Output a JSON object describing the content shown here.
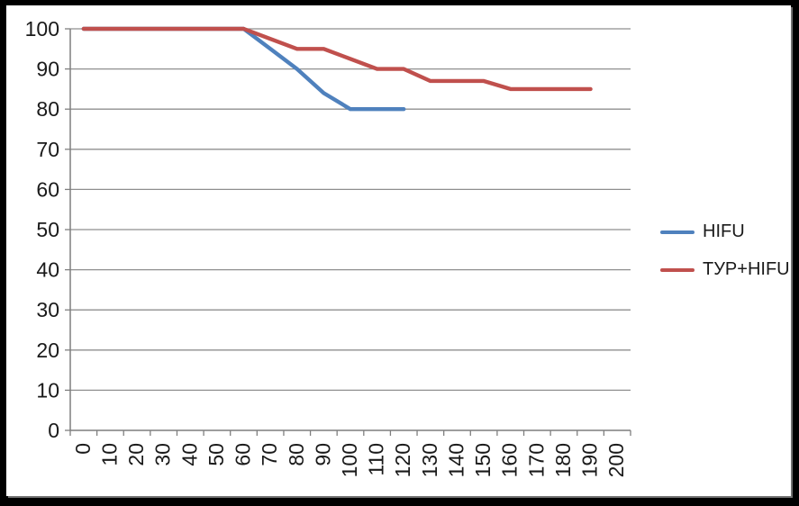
{
  "chart_data": {
    "type": "line",
    "title": "",
    "xlabel": "",
    "ylabel": "",
    "categories": [
      "0",
      "10",
      "20",
      "30",
      "40",
      "50",
      "60",
      "70",
      "80",
      "90",
      "100",
      "110",
      "120",
      "130",
      "140",
      "150",
      "160",
      "170",
      "180",
      "190",
      "200"
    ],
    "y_ticks": [
      0,
      10,
      20,
      30,
      40,
      50,
      60,
      70,
      80,
      90,
      100
    ],
    "ylim": [
      0,
      100
    ],
    "xlim": [
      0,
      200
    ],
    "grid": true,
    "legend_position": "right",
    "x_label_orientation": "rotated-90-ccw",
    "series": [
      {
        "name": "HIFU",
        "color": "#4f81bd",
        "points": [
          [
            0,
            100
          ],
          [
            10,
            100
          ],
          [
            20,
            100
          ],
          [
            30,
            100
          ],
          [
            40,
            100
          ],
          [
            50,
            100
          ],
          [
            60,
            100
          ],
          [
            70,
            95
          ],
          [
            80,
            90
          ],
          [
            90,
            84
          ],
          [
            100,
            80
          ],
          [
            110,
            80
          ],
          [
            120,
            80
          ]
        ]
      },
      {
        "name": "ТУР+HIFU",
        "color": "#c0504d",
        "points": [
          [
            0,
            100
          ],
          [
            10,
            100
          ],
          [
            20,
            100
          ],
          [
            30,
            100
          ],
          [
            40,
            100
          ],
          [
            50,
            100
          ],
          [
            60,
            100
          ],
          [
            70,
            97.5
          ],
          [
            80,
            95
          ],
          [
            90,
            95
          ],
          [
            100,
            92.5
          ],
          [
            110,
            90
          ],
          [
            120,
            90
          ],
          [
            130,
            87
          ],
          [
            140,
            87
          ],
          [
            150,
            87
          ],
          [
            160,
            85
          ],
          [
            170,
            85
          ],
          [
            180,
            85
          ],
          [
            190,
            85
          ]
        ]
      }
    ],
    "colors": {
      "grid": "#8f8f8f",
      "axis": "#7f7f7f",
      "label": "#1a1a1a",
      "background": "#ffffff",
      "frame": "#000000"
    }
  }
}
